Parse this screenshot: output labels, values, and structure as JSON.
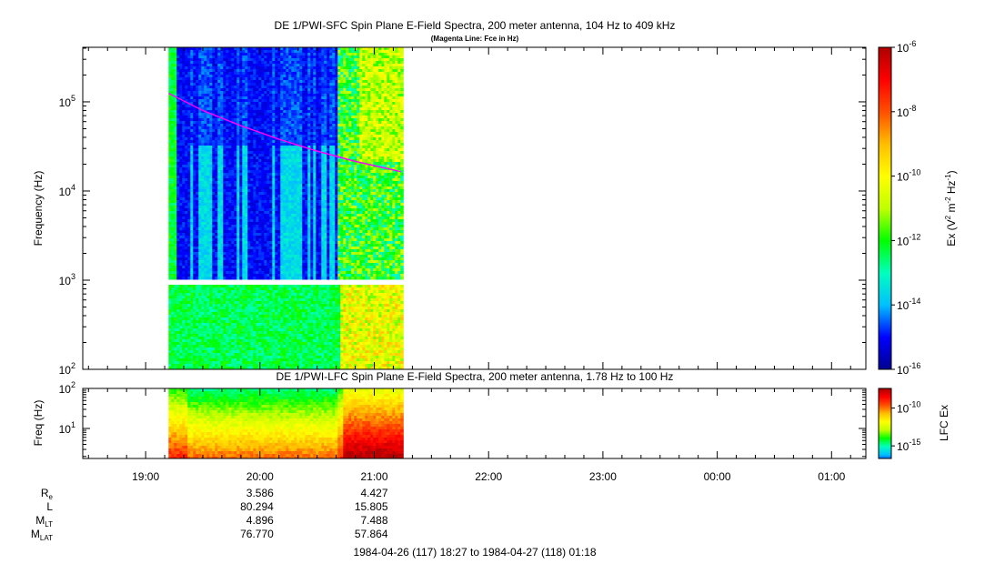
{
  "chart_data": [
    {
      "type": "heatmap",
      "title": "DE 1/PWI-SFC  Spin Plane E-Field Spectra, 200 meter antenna, 104 Hz to 409 kHz",
      "subtitle": "(Magenta Line: Fce in Hz)",
      "ylabel": "Frequency (Hz)",
      "yscale": "log",
      "ylim": [
        100,
        409000
      ],
      "yticks": [
        {
          "base": "10",
          "exp": "2"
        },
        {
          "base": "10",
          "exp": "3"
        },
        {
          "base": "10",
          "exp": "4"
        },
        {
          "base": "10",
          "exp": "5"
        }
      ],
      "xlim": [
        "18:27",
        "01:18"
      ],
      "data_coverage": [
        "19:12",
        "21:14"
      ],
      "gap_band_hz": [
        900,
        1020
      ],
      "series": [
        {
          "name": "Fce",
          "color": "#ff00ff",
          "x": [
            "19:12",
            "19:30",
            "19:50",
            "20:10",
            "20:30",
            "20:50",
            "21:14"
          ],
          "y": [
            125000,
            80000,
            54000,
            38000,
            28000,
            21500,
            16500
          ]
        }
      ],
      "colorbar": {
        "label": "Ex (V",
        "label_sup1": "2",
        "label_mid": " m",
        "label_sup2": "-2",
        "label_hz": " Hz",
        "label_sup3": "-1",
        "label_end": ")",
        "scale": "log",
        "range": [
          1e-16,
          1e-06
        ],
        "ticks": [
          {
            "base": "10",
            "exp": "-16"
          },
          {
            "base": "10",
            "exp": "-14"
          },
          {
            "base": "10",
            "exp": "-12"
          },
          {
            "base": "10",
            "exp": "-10"
          },
          {
            "base": "10",
            "exp": "-8"
          },
          {
            "base": "10",
            "exp": "-6"
          }
        ],
        "colormap": [
          "#00008f",
          "#0000ff",
          "#00bfff",
          "#00ffbf",
          "#00ff00",
          "#bfff00",
          "#ffff00",
          "#ffbf00",
          "#ff5000",
          "#ff0000",
          "#b00000"
        ]
      }
    },
    {
      "type": "heatmap",
      "title": "DE 1/PWI-LFC  Spin Plane E-Field Spectra, 200 meter antenna, 1.78 Hz to 100 Hz",
      "ylabel": "Freq (Hz)",
      "yscale": "log",
      "ylim": [
        1.78,
        100
      ],
      "yticks": [
        {
          "base": "10",
          "exp": "1"
        },
        {
          "base": "10",
          "exp": "2"
        }
      ],
      "xlim": [
        "18:27",
        "01:18"
      ],
      "data_coverage": [
        "19:12",
        "21:14"
      ],
      "colorbar": {
        "label": "LFC Ex",
        "scale": "log",
        "ticks": [
          {
            "base": "10",
            "exp": "-15"
          },
          {
            "base": "10",
            "exp": "-10"
          }
        ]
      }
    }
  ],
  "time_axis": {
    "ticks": [
      "19:00",
      "20:00",
      "21:00",
      "22:00",
      "23:00",
      "00:00",
      "01:00"
    ]
  },
  "ephemeris": {
    "rows": [
      {
        "label": "R",
        "sub": "e",
        "values": [
          "3.586",
          "4.427"
        ]
      },
      {
        "label": "L",
        "sub": "",
        "values": [
          "80.294",
          "15.805"
        ]
      },
      {
        "label": "M",
        "sub": "LT",
        "values": [
          "4.896",
          "7.488"
        ]
      },
      {
        "label": "M",
        "sub": "LAT",
        "values": [
          "76.770",
          "57.864"
        ]
      }
    ]
  },
  "footer": "1984-04-26 (117) 18:27 to 1984-04-27 (118) 01:18"
}
